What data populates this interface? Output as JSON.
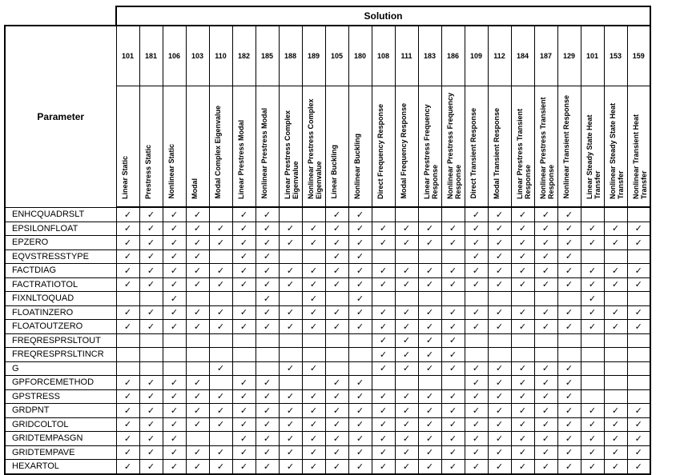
{
  "header": {
    "group_title": "Solution",
    "parameter_label": "Parameter"
  },
  "check_mark": "✓",
  "columns": [
    {
      "number": "101",
      "name": "Linear Static"
    },
    {
      "number": "181",
      "name": "Prestress Static"
    },
    {
      "number": "106",
      "name": "Nonlinear Static"
    },
    {
      "number": "103",
      "name": "Modal"
    },
    {
      "number": "110",
      "name": "Modal Complex Eigenvalue"
    },
    {
      "number": "182",
      "name": "Linear Prestress Modal"
    },
    {
      "number": "185",
      "name": "Nonlinear Prestress Modal"
    },
    {
      "number": "188",
      "name": "Linear Prestress Complex Eigenvalue"
    },
    {
      "number": "189",
      "name": "Nonlinear Prestress Complex Eigenvalue"
    },
    {
      "number": "105",
      "name": "Linear Buckling"
    },
    {
      "number": "180",
      "name": "Nonlinear Buckling"
    },
    {
      "number": "108",
      "name": "Direct Frequency Response"
    },
    {
      "number": "111",
      "name": "Modal Frequency Response"
    },
    {
      "number": "183",
      "name": "Linear Prestress Frequency Response"
    },
    {
      "number": "186",
      "name": "Nonlinear Prestress Frequency Response"
    },
    {
      "number": "109",
      "name": "Direct Transient Response"
    },
    {
      "number": "112",
      "name": "Modal Transient Response"
    },
    {
      "number": "184",
      "name": "Linear Prestress Transient Response"
    },
    {
      "number": "187",
      "name": "Nonlinear Prestress Transient Response"
    },
    {
      "number": "129",
      "name": "Nonlinear Transient Response"
    },
    {
      "number": "101",
      "name": "Linear Steady State Heat Transfer"
    },
    {
      "number": "153",
      "name": "Nonlinear Steady State Heat Transfer"
    },
    {
      "number": "159",
      "name": "Nonlinear Transient Heat Transfer"
    }
  ],
  "rows": [
    {
      "parameter": "ENHCQUADRSLT",
      "support": "11110110011000011111000"
    },
    {
      "parameter": "EPSILONFLOAT",
      "support": "11111111111111111111111"
    },
    {
      "parameter": "EPZERO",
      "support": "11111111111111111111111"
    },
    {
      "parameter": "EQVSTRESSTYPE",
      "support": "11110110011000011111000"
    },
    {
      "parameter": "FACTDIAG",
      "support": "11111111111111111111111"
    },
    {
      "parameter": "FACTRATIOTOL",
      "support": "11111111111111111111111"
    },
    {
      "parameter": "FIXNLTOQUAD",
      "support": "00100010101000000000100"
    },
    {
      "parameter": "FLOATINZERO",
      "support": "11111111111111111111111"
    },
    {
      "parameter": "FLOATOUTZERO",
      "support": "11111111111111111111111"
    },
    {
      "parameter": "FREQRESPRSLTOUT",
      "support": "00000000000111100000000"
    },
    {
      "parameter": "FREQRESPRSLTINCR",
      "support": "00000000000111100000000"
    },
    {
      "parameter": "G",
      "support": "00001001100111111111000"
    },
    {
      "parameter": "GPFORCEMETHOD",
      "support": "11110110011000011111000"
    },
    {
      "parameter": "GPSTRESS",
      "support": "11111111111111111111000"
    },
    {
      "parameter": "GRDPNT",
      "support": "11111111111111111111111"
    },
    {
      "parameter": "GRIDCOLTOL",
      "support": "11111111111111111111111"
    },
    {
      "parameter": "GRIDTEMPASGN",
      "support": "11100111111111111111111"
    },
    {
      "parameter": "GRIDTEMPAVE",
      "support": "11111111111111111111111"
    },
    {
      "parameter": "HEXARTOL",
      "support": "11111111111111111111111"
    }
  ]
}
